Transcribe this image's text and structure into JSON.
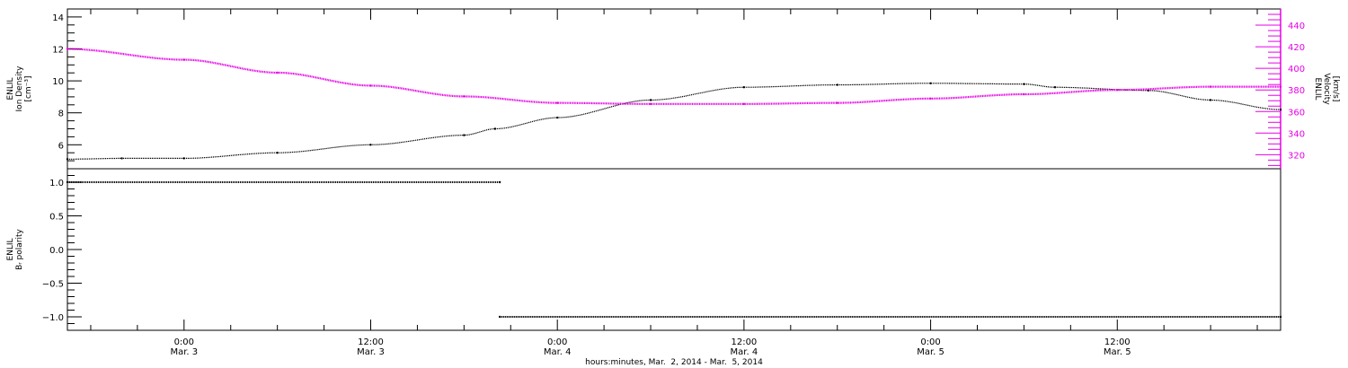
{
  "chart_data": [
    {
      "type": "line",
      "panel": "top",
      "ylabel_left": [
        "ENLIL",
        "Ion Density",
        "[cm⁻³]"
      ],
      "ylabel_right": [
        "ENLIL",
        "Velocity",
        "[km/s]"
      ],
      "x_range_hours": [
        -7.5,
        70.5
      ],
      "ylim_left": [
        4.5,
        14.5
      ],
      "yticks_left": [
        "6",
        "8",
        "10",
        "12",
        "14"
      ],
      "ylim_right": [
        307,
        455
      ],
      "yticks_right": [
        "320",
        "340",
        "360",
        "380",
        "400",
        "420",
        "440"
      ],
      "left_color": "#000000",
      "right_color": "#e600e6",
      "series": [
        {
          "axis": "left",
          "x": [
            -7.5,
            -4,
            0,
            6,
            12,
            18,
            20,
            24,
            30,
            36,
            42,
            48,
            54,
            56,
            62,
            66,
            70.5
          ],
          "values": [
            5.1,
            5.15,
            5.15,
            5.5,
            6.0,
            6.6,
            7.0,
            7.7,
            8.8,
            9.6,
            9.75,
            9.85,
            9.8,
            9.6,
            9.4,
            8.8,
            8.2
          ]
        },
        {
          "axis": "right",
          "x": [
            -7.5,
            0,
            6,
            12,
            18,
            24,
            30,
            36,
            42,
            48,
            54,
            60,
            66,
            70.5
          ],
          "values": [
            418,
            408,
            396,
            384,
            374,
            368,
            367,
            367,
            368,
            372,
            376,
            380,
            383,
            383
          ]
        }
      ]
    },
    {
      "type": "line",
      "panel": "bottom",
      "ylabel_left": [
        "ENLIL",
        "Bᵣ polarity"
      ],
      "ylim_left": [
        -1.2,
        1.2
      ],
      "yticks_left": [
        "1.0",
        "0.5",
        "0.0",
        "−0.5",
        "−1.0"
      ],
      "series": [
        {
          "x": [
            -7.5,
            20.3
          ],
          "values": [
            1.0,
            1.0
          ]
        },
        {
          "x": [
            20.3,
            70.5
          ],
          "values": [
            -1.0,
            -1.0
          ]
        }
      ]
    }
  ],
  "x_axis": {
    "tick_labels": [
      {
        "time": "0:00",
        "date": "Mar. 3",
        "hour": 0
      },
      {
        "time": "12:00",
        "date": "Mar. 3",
        "hour": 12
      },
      {
        "time": "0:00",
        "date": "Mar. 4",
        "hour": 24
      },
      {
        "time": "12:00",
        "date": "Mar. 4",
        "hour": 36
      },
      {
        "time": "0:00",
        "date": "Mar. 5",
        "hour": 48
      },
      {
        "time": "12:00",
        "date": "Mar. 5",
        "hour": 60
      }
    ],
    "xlabel": "hours:minutes, Mar.  2, 2014 - Mar.  5, 2014"
  }
}
